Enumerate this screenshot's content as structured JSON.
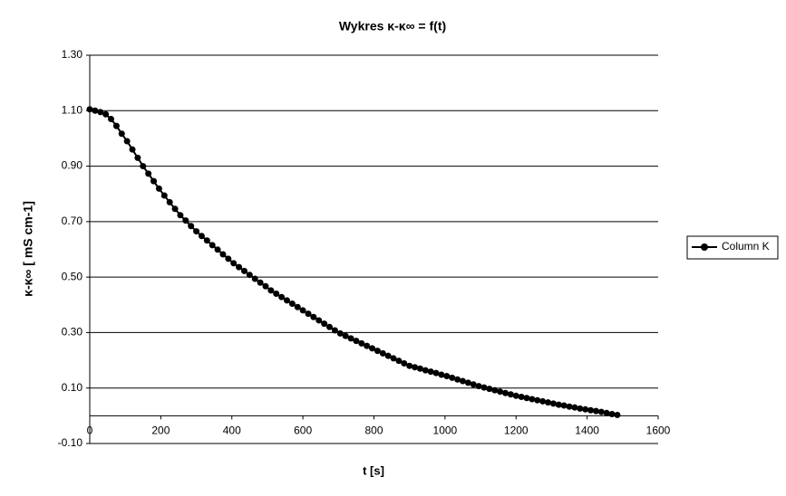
{
  "chart_data": {
    "type": "line",
    "title": "Wykres κ-κ∞ = f(t)",
    "x_label": "t [s]",
    "y_label": "κ-κ∞ [ mS cm-1]",
    "xlim": [
      0,
      1600
    ],
    "xticks": [
      0,
      200,
      400,
      600,
      800,
      1000,
      1200,
      1400,
      1600
    ],
    "ylim": [
      -0.1,
      1.3
    ],
    "yticks": [
      {
        "value": -0.1,
        "label": "-0.10"
      },
      {
        "value": 0.1,
        "label": "0.10"
      },
      {
        "value": 0.3,
        "label": "0.30"
      },
      {
        "value": 0.5,
        "label": "0.50"
      },
      {
        "value": 0.7,
        "label": "0.70"
      },
      {
        "value": 0.9,
        "label": "0.90"
      },
      {
        "value": 1.1,
        "label": "1.10"
      },
      {
        "value": 1.3,
        "label": "1.30"
      }
    ],
    "grid": true,
    "legend": "right",
    "x": [
      0,
      15,
      30,
      45,
      60,
      75,
      90,
      105,
      120,
      135,
      150,
      165,
      180,
      195,
      210,
      225,
      240,
      255,
      270,
      285,
      300,
      315,
      330,
      345,
      360,
      375,
      390,
      405,
      420,
      435,
      450,
      465,
      480,
      495,
      510,
      525,
      540,
      555,
      570,
      585,
      600,
      615,
      630,
      645,
      660,
      675,
      690,
      705,
      720,
      735,
      750,
      765,
      780,
      795,
      810,
      825,
      840,
      855,
      870,
      885,
      900,
      915,
      930,
      945,
      960,
      975,
      990,
      1005,
      1020,
      1035,
      1050,
      1065,
      1080,
      1095,
      1110,
      1125,
      1140,
      1155,
      1170,
      1185,
      1200,
      1215,
      1230,
      1245,
      1260,
      1275,
      1290,
      1305,
      1320,
      1335,
      1350,
      1365,
      1380,
      1395,
      1410,
      1425,
      1440,
      1455,
      1470,
      1485
    ],
    "series": [
      {
        "name": "Column K",
        "color": "#000000",
        "values": [
          1.105,
          1.1,
          1.095,
          1.087,
          1.07,
          1.045,
          1.017,
          0.99,
          0.96,
          0.93,
          0.9,
          0.873,
          0.846,
          0.819,
          0.794,
          0.77,
          0.746,
          0.723,
          0.704,
          0.684,
          0.665,
          0.648,
          0.632,
          0.615,
          0.599,
          0.582,
          0.566,
          0.55,
          0.536,
          0.522,
          0.508,
          0.494,
          0.48,
          0.467,
          0.452,
          0.44,
          0.428,
          0.416,
          0.404,
          0.392,
          0.38,
          0.368,
          0.356,
          0.344,
          0.332,
          0.32,
          0.308,
          0.297,
          0.288,
          0.279,
          0.27,
          0.261,
          0.252,
          0.243,
          0.234,
          0.225,
          0.216,
          0.207,
          0.198,
          0.189,
          0.18,
          0.175,
          0.17,
          0.164,
          0.159,
          0.154,
          0.148,
          0.143,
          0.137,
          0.131,
          0.125,
          0.119,
          0.113,
          0.107,
          0.102,
          0.097,
          0.092,
          0.087,
          0.082,
          0.077,
          0.072,
          0.068,
          0.064,
          0.06,
          0.056,
          0.052,
          0.048,
          0.044,
          0.04,
          0.037,
          0.033,
          0.03,
          0.026,
          0.023,
          0.02,
          0.017,
          0.014,
          0.01,
          0.006,
          0.003
        ]
      }
    ]
  }
}
